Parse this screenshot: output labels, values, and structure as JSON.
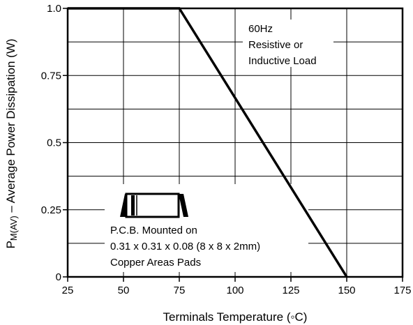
{
  "chart_data": {
    "type": "line",
    "title": "",
    "xlabel": "Terminals Temperature (◦C)",
    "ylabel_main": "P",
    "ylabel_sub": "M(AV)",
    "ylabel_rest": " – Average Power Dissipation (W)",
    "xlim": [
      25,
      175
    ],
    "ylim": [
      0,
      1.0
    ],
    "x_ticks": [
      25,
      50,
      75,
      100,
      125,
      150,
      175
    ],
    "x_tick_labels": [
      "25",
      "50",
      "75",
      "100",
      "125",
      "150",
      "175"
    ],
    "y_ticks": [
      0,
      0.25,
      0.5,
      0.75,
      1.0
    ],
    "y_tick_labels": [
      "0",
      "0.25",
      "0.5",
      "0.75",
      "1.0"
    ],
    "grid": true,
    "series": [
      {
        "x": [
          25,
          75,
          150
        ],
        "y": [
          1.0,
          1.0,
          0
        ]
      }
    ],
    "annotations": {
      "load": [
        "60Hz",
        "Resistive or",
        "Inductive Load"
      ],
      "pcb": [
        "P.C.B. Mounted on",
        "0.31 x 0.31 x 0.08  (8 x 8 x 2mm)",
        "Copper Areas Pads"
      ]
    }
  }
}
